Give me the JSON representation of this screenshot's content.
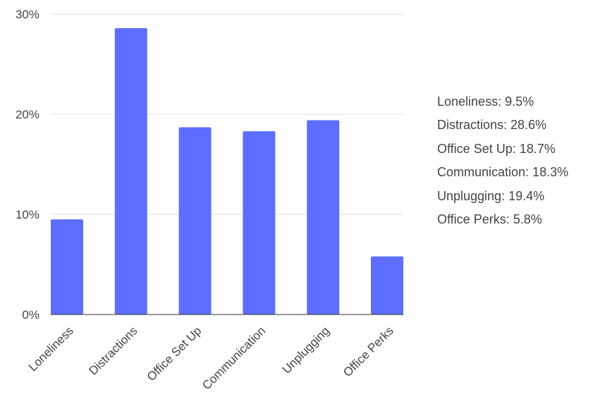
{
  "chart_data": {
    "type": "bar",
    "categories": [
      "Loneliness",
      "Distractions",
      "Office Set Up",
      "Communication",
      "Unplugging",
      "Office Perks"
    ],
    "values": [
      9.5,
      28.6,
      18.7,
      18.3,
      19.4,
      5.8
    ],
    "title": "",
    "xlabel": "",
    "ylabel": "",
    "ylim": [
      0,
      30
    ],
    "yticks": [
      "0%",
      "10%",
      "20%",
      "30%"
    ],
    "grid": true,
    "bar_color": "#5b6eff",
    "legend_position": "right",
    "legend": [
      "Loneliness: 9.5%",
      "Distractions: 28.6%",
      "Office Set Up: 18.7%",
      "Communication: 18.3%",
      "Unplugging: 19.4%",
      "Office Perks: 5.8%"
    ]
  }
}
